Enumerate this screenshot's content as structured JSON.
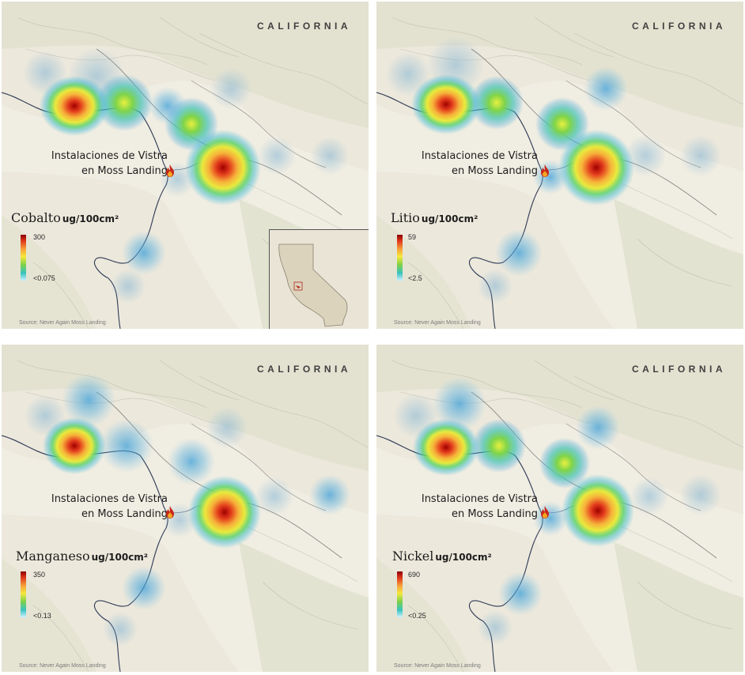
{
  "state_label": "CALIFORNIA",
  "site_label_line1": "Instalaciones de Vistra",
  "site_label_line2": "en Moss Landing",
  "source": "Source: Never Again Moss Landing",
  "unit": "ug/100cm²",
  "icons": {
    "site_marker": "fire-icon"
  },
  "colors": {
    "max": "#8b0000",
    "mid": "#f4e93c",
    "min": "#cfefff"
  },
  "panels": [
    {
      "metal": "Cobalto",
      "max": "300",
      "min": "<0.075"
    },
    {
      "metal": "Litio",
      "max": "59",
      "min": "<2.5"
    },
    {
      "metal": "Manganeso",
      "max": "350",
      "min": "<0.13"
    },
    {
      "metal": "Nickel",
      "max": "690",
      "min": "<0.25"
    }
  ]
}
